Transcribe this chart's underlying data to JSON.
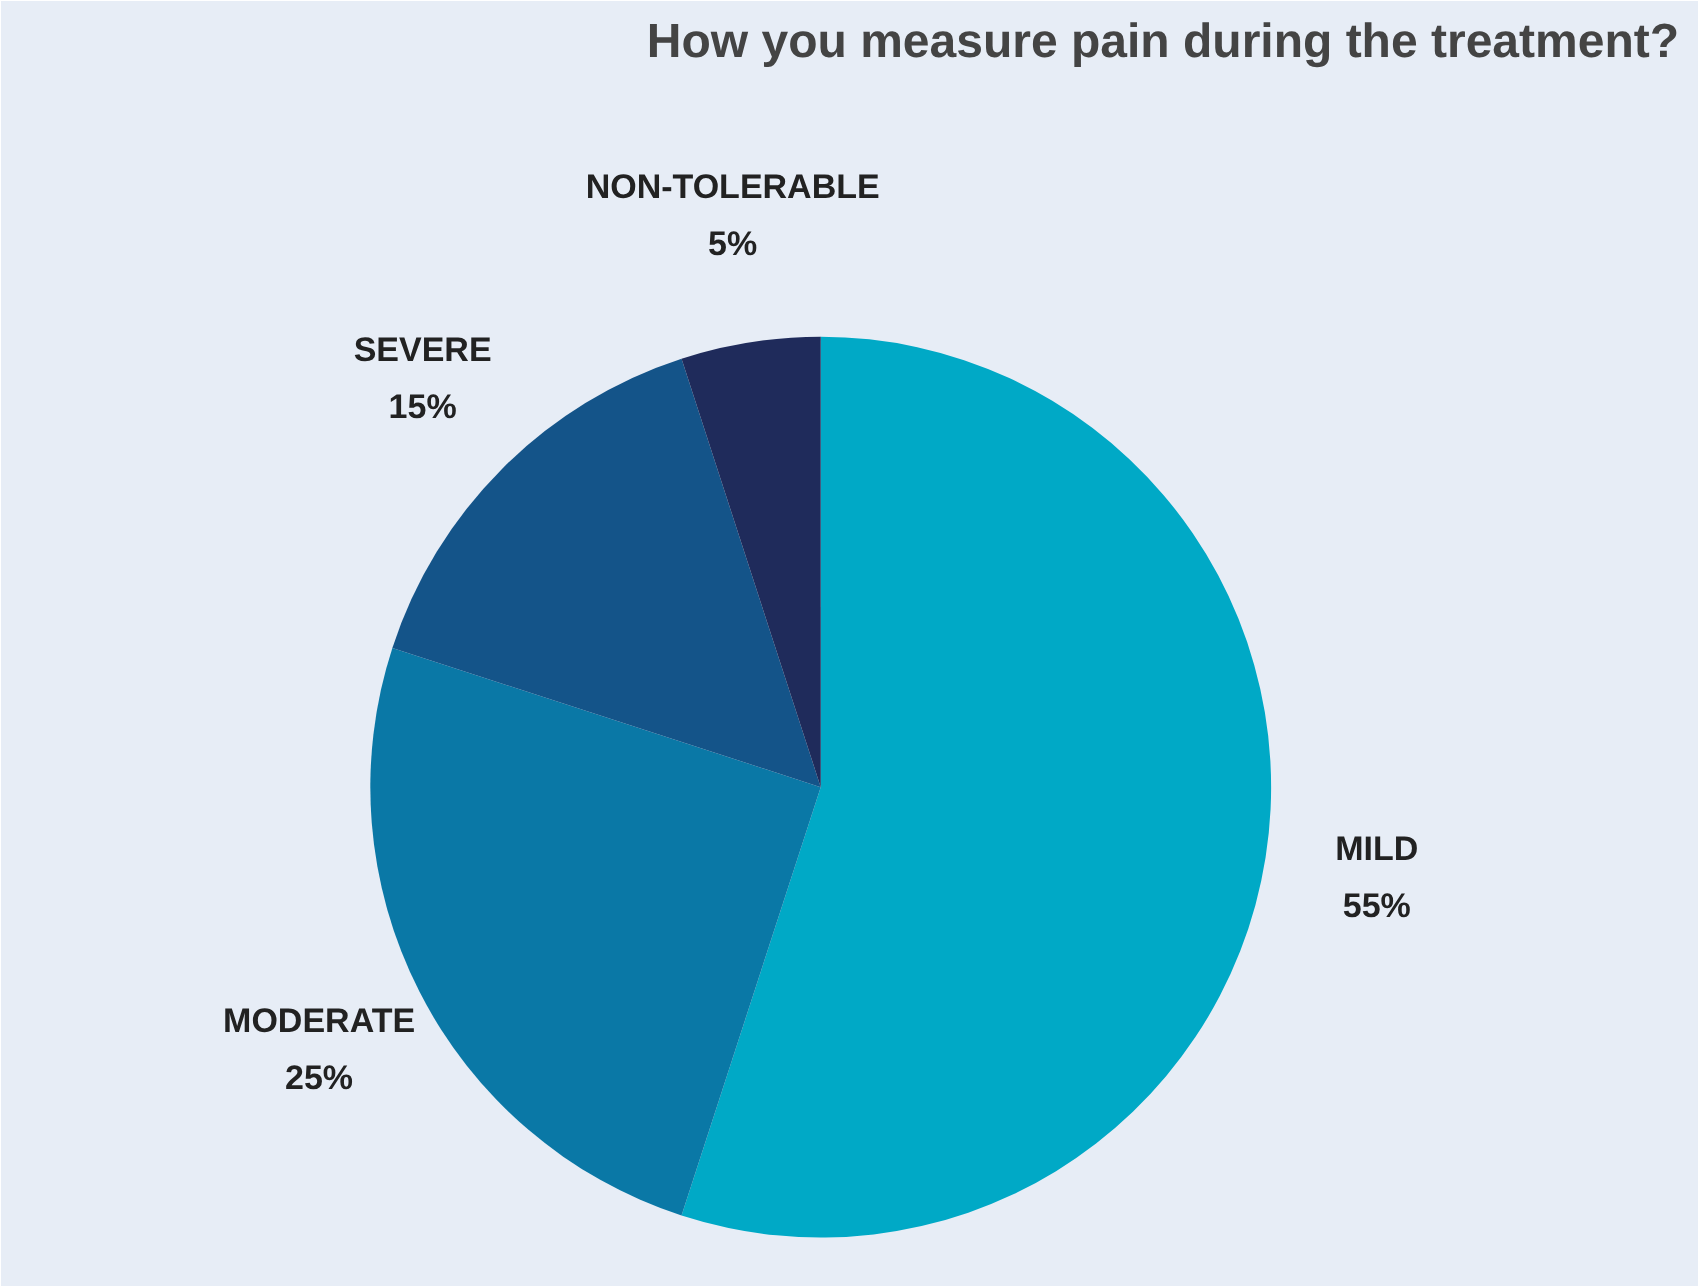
{
  "chart_data": {
    "type": "pie",
    "title": "How you measure pain during the treatment?",
    "categories": [
      "MILD",
      "MODERATE",
      "SEVERE",
      "NON-TOLERABLE"
    ],
    "values": [
      55,
      25,
      15,
      5
    ],
    "value_labels": [
      "55%",
      "25%",
      "15%",
      "5%"
    ],
    "colors": [
      "#00a9c6",
      "#0a78a6",
      "#145489",
      "#1f2b5b"
    ]
  }
}
